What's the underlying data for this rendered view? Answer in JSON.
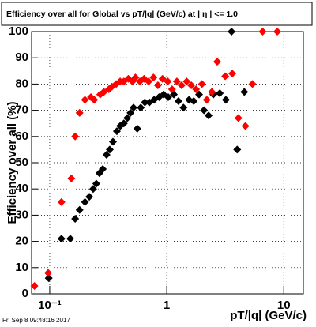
{
  "chart_data": {
    "type": "scatter",
    "title": "Efficiency over all for Global vs pT/|q| (GeV/c) at |  η  | <= 1.0",
    "x_label": "pT/|q| (GeV/c)",
    "y_label": "Efficiency over all (%)",
    "footer": "Fri Sep  8 09:48:16 2017",
    "log_x": true,
    "grid": true,
    "xlim": [
      0.07,
      14.7
    ],
    "ylim": [
      0,
      100
    ],
    "xticks": [
      {
        "value": 0.1,
        "label": "10⁻¹"
      },
      1,
      10
    ],
    "yticks": [
      0,
      10,
      20,
      30,
      40,
      50,
      60,
      70,
      80,
      90,
      100
    ],
    "series": [
      {
        "color": "#000000",
        "x": [
          0.098,
          0.126,
          0.15,
          0.165,
          0.18,
          0.2,
          0.218,
          0.235,
          0.25,
          0.266,
          0.284,
          0.306,
          0.326,
          0.347,
          0.375,
          0.4,
          0.43,
          0.46,
          0.49,
          0.52,
          0.56,
          0.6,
          0.65,
          0.71,
          0.78,
          0.86,
          0.94,
          1.03,
          1.15,
          1.26,
          1.39,
          1.55,
          1.7,
          1.89,
          2.08,
          2.28,
          2.5,
          2.84,
          3.2,
          3.58,
          4.0,
          4.6
        ],
        "values": [
          6,
          21,
          21,
          28.6,
          32,
          35,
          37,
          40,
          42,
          46,
          47.6,
          53,
          55,
          58,
          62,
          64,
          65,
          67,
          69,
          71,
          63,
          71,
          73,
          73,
          74,
          75,
          76,
          75,
          76,
          73.5,
          71,
          74,
          73.5,
          76,
          70,
          68,
          76,
          76.5,
          74,
          100,
          55,
          77
        ]
      },
      {
        "color": "#ff0000",
        "x": [
          0.074,
          0.097,
          0.126,
          0.153,
          0.165,
          0.18,
          0.2,
          0.225,
          0.24,
          0.27,
          0.29,
          0.32,
          0.34,
          0.37,
          0.4,
          0.43,
          0.47,
          0.51,
          0.54,
          0.59,
          0.64,
          0.7,
          0.77,
          0.84,
          0.92,
          1.02,
          1.11,
          1.22,
          1.34,
          1.48,
          1.62,
          1.78,
          2.0,
          2.2,
          2.43,
          2.7,
          3.16,
          3.63,
          4.1,
          4.7,
          5.4,
          6.6,
          8.8
        ],
        "values": [
          3,
          8,
          35,
          44,
          60,
          69,
          74,
          75,
          74,
          76,
          77,
          78,
          79,
          80,
          81,
          81,
          82,
          81,
          82.5,
          81,
          82,
          81,
          82.5,
          79.5,
          82,
          81,
          78,
          81,
          79.5,
          81,
          79.5,
          78,
          80,
          74,
          77,
          88.5,
          83,
          84,
          67,
          64,
          80,
          100,
          100
        ]
      }
    ]
  }
}
